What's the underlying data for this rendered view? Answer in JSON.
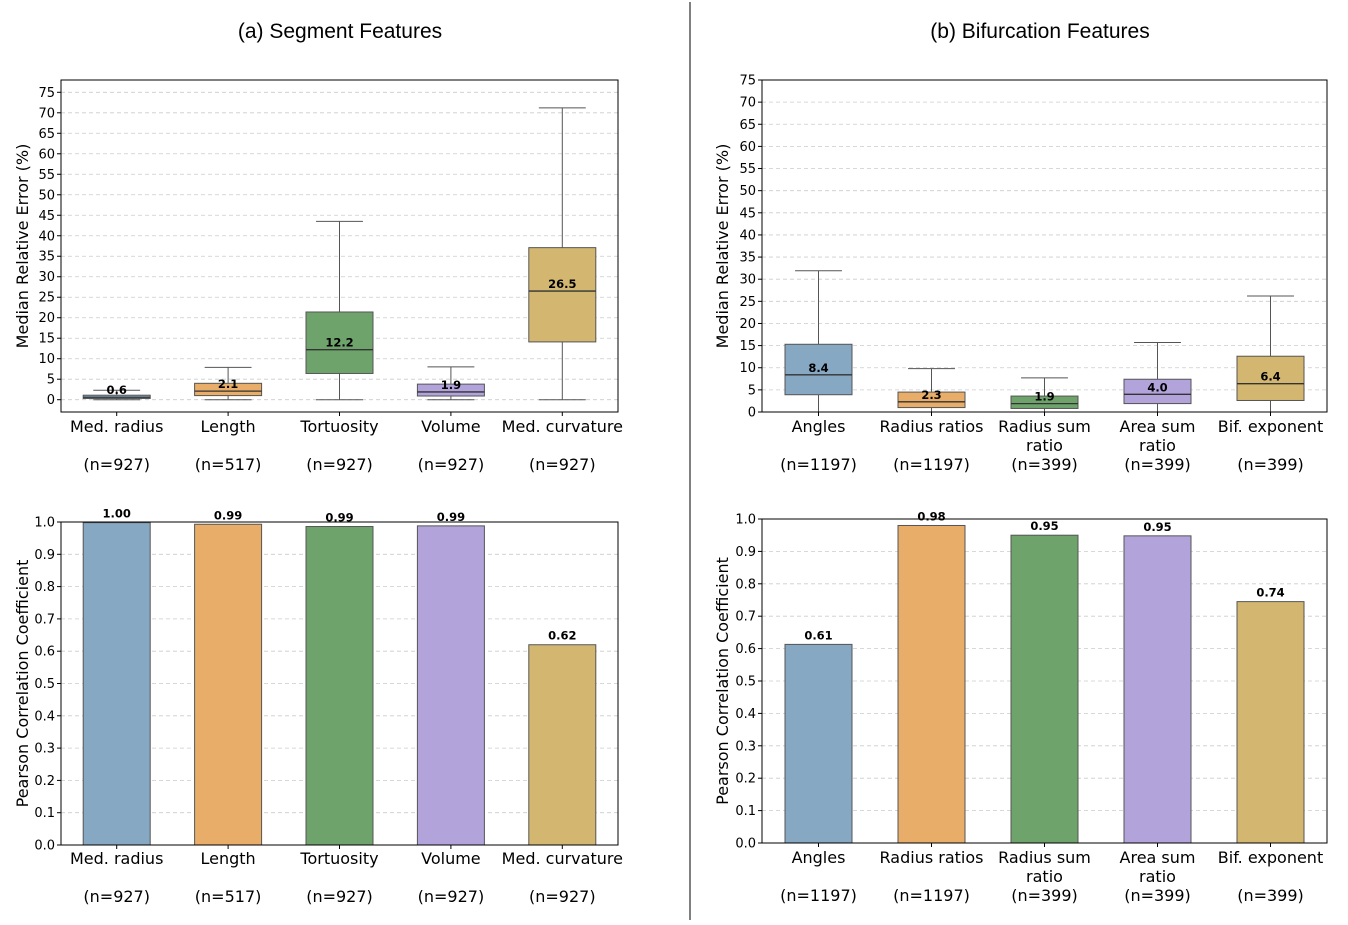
{
  "colors": {
    "blue": "#86a8c2",
    "orange": "#e8ad68",
    "green": "#6ea46c",
    "purple": "#b3a3db",
    "gold": "#d3b771",
    "edge": "#555555",
    "grid": "#cccccc"
  },
  "chart_data": [
    {
      "id": "a-box",
      "type": "box",
      "title": "(a) Segment Features",
      "ylabel": "Median Relative Error (%)",
      "ylim": [
        -3,
        78
      ],
      "yticks": [
        0,
        5,
        10,
        15,
        20,
        25,
        30,
        35,
        40,
        45,
        50,
        55,
        60,
        65,
        70,
        75
      ],
      "categories": [
        "Med. radius",
        "Length",
        "Tortuosity",
        "Volume",
        "Med. curvature"
      ],
      "counts": [
        "(n=927)",
        "(n=517)",
        "(n=927)",
        "(n=927)",
        "(n=927)"
      ],
      "boxes": [
        {
          "whislo": 0.0,
          "q1": 0.3,
          "med": 0.6,
          "q3": 1.1,
          "whishi": 2.3,
          "label": "0.6"
        },
        {
          "whislo": 0.0,
          "q1": 1.0,
          "med": 2.1,
          "q3": 4.0,
          "whishi": 7.9,
          "label": "2.1"
        },
        {
          "whislo": 0.0,
          "q1": 6.4,
          "med": 12.2,
          "q3": 21.4,
          "whishi": 43.5,
          "label": "12.2"
        },
        {
          "whislo": 0.0,
          "q1": 0.9,
          "med": 1.9,
          "q3": 3.8,
          "whishi": 8.0,
          "label": "1.9"
        },
        {
          "whislo": 0.0,
          "q1": 14.1,
          "med": 26.5,
          "q3": 37.1,
          "whishi": 71.2,
          "label": "26.5"
        }
      ]
    },
    {
      "id": "b-box",
      "type": "box",
      "title": "(b) Bifurcation Features",
      "ylabel": "Median Relative Error (%)",
      "ylim": [
        0,
        75
      ],
      "yticks": [
        0,
        5,
        10,
        15,
        20,
        25,
        30,
        35,
        40,
        45,
        50,
        55,
        60,
        65,
        70,
        75
      ],
      "categories": [
        "Angles",
        "Radius ratios",
        "Radius sum\nratio",
        "Area sum\nratio",
        "Bif. exponent"
      ],
      "counts": [
        "(n=1197)",
        "(n=1197)",
        "(n=399)",
        "(n=399)",
        "(n=399)"
      ],
      "boxes": [
        {
          "whislo": 0.0,
          "q1": 3.9,
          "med": 8.4,
          "q3": 15.3,
          "whishi": 31.9,
          "label": "8.4"
        },
        {
          "whislo": 0.0,
          "q1": 1.0,
          "med": 2.3,
          "q3": 4.5,
          "whishi": 9.8,
          "label": "2.3"
        },
        {
          "whislo": 0.0,
          "q1": 0.8,
          "med": 1.9,
          "q3": 3.6,
          "whishi": 7.7,
          "label": "1.9"
        },
        {
          "whislo": 0.0,
          "q1": 1.9,
          "med": 4.0,
          "q3": 7.4,
          "whishi": 15.7,
          "label": "4.0"
        },
        {
          "whislo": 0.0,
          "q1": 2.6,
          "med": 6.4,
          "q3": 12.6,
          "whishi": 26.2,
          "label": "6.4"
        }
      ]
    },
    {
      "id": "a-bar",
      "type": "bar",
      "ylabel": "Pearson Correlation Coefficient",
      "ylim": [
        0,
        1.0
      ],
      "yticks": [
        0.0,
        0.1,
        0.2,
        0.3,
        0.4,
        0.5,
        0.6,
        0.7,
        0.8,
        0.9,
        1.0
      ],
      "categories": [
        "Med. radius",
        "Length",
        "Tortuosity",
        "Volume",
        "Med. curvature"
      ],
      "counts": [
        "(n=927)",
        "(n=517)",
        "(n=927)",
        "(n=927)",
        "(n=927)"
      ],
      "values": [
        0.998,
        0.993,
        0.986,
        0.988,
        0.62
      ],
      "labels": [
        "1.00",
        "0.99",
        "0.99",
        "0.99",
        "0.62"
      ]
    },
    {
      "id": "b-bar",
      "type": "bar",
      "ylabel": "Pearson Correlation Coefficient",
      "ylim": [
        0,
        1.0
      ],
      "yticks": [
        0.0,
        0.1,
        0.2,
        0.3,
        0.4,
        0.5,
        0.6,
        0.7,
        0.8,
        0.9,
        1.0
      ],
      "categories": [
        "Angles",
        "Radius ratios",
        "Radius sum\nratio",
        "Area sum\nratio",
        "Bif. exponent"
      ],
      "counts": [
        "(n=1197)",
        "(n=1197)",
        "(n=399)",
        "(n=399)",
        "(n=399)"
      ],
      "values": [
        0.613,
        0.98,
        0.95,
        0.948,
        0.745
      ],
      "labels": [
        "0.61",
        "0.98",
        "0.95",
        "0.95",
        "0.74"
      ]
    }
  ]
}
